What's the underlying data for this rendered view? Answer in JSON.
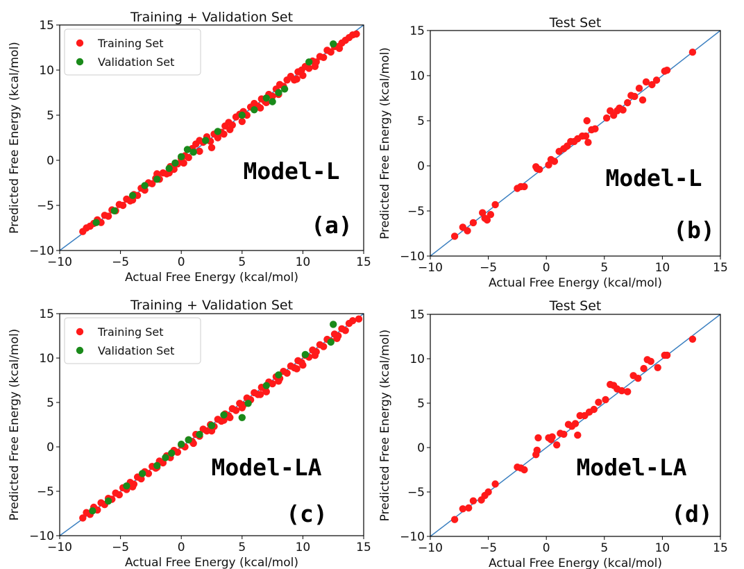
{
  "figure": {
    "x_axis_label": "Actual Free Energy (kcal/mol)",
    "y_axis_label": "Predicted Free Energy (kcal/mol)",
    "colors": {
      "training": "#ff1a1a",
      "validation": "#1a8a1a",
      "test": "#ff1a1a",
      "diagonal": "#3a7fc0"
    }
  },
  "chart_data": [
    {
      "type": "scatter",
      "panel": "(a)",
      "title": "Training + Validation Set",
      "xlabel": "Actual Free Energy (kcal/mol)",
      "ylabel": "Predicted Free Energy (kcal/mol)",
      "model": "Model-L",
      "xlim": [
        -10,
        15
      ],
      "ylim": [
        -10,
        15
      ],
      "xticks": [
        "−10",
        "−5",
        "0",
        "5",
        "10",
        "15"
      ],
      "yticks": [
        "−10",
        "−5",
        "0",
        "5",
        "10",
        "15"
      ],
      "legend": {
        "placement": "top-left",
        "entries": [
          "Training Set",
          "Validation Set"
        ]
      },
      "reference_line": "y = x",
      "series": [
        {
          "name": "Training Set",
          "color": "#ff1a1a",
          "x": [
            -8.1,
            -7.8,
            -7.5,
            -7.2,
            -6.9,
            -6.6,
            -6.3,
            -6.0,
            -5.7,
            -5.4,
            -5.1,
            -4.8,
            -4.5,
            -4.2,
            -3.9,
            -3.6,
            -3.3,
            -3.0,
            -2.7,
            -2.4,
            -2.1,
            -1.8,
            -1.5,
            -1.2,
            -0.9,
            -0.6,
            -0.3,
            0.0,
            0.3,
            0.6,
            0.9,
            1.2,
            1.5,
            1.8,
            2.1,
            2.4,
            2.7,
            3.0,
            3.3,
            3.6,
            3.9,
            4.2,
            4.5,
            4.8,
            5.1,
            5.4,
            5.7,
            6.0,
            6.3,
            6.6,
            6.9,
            7.2,
            7.5,
            7.8,
            8.1,
            8.4,
            8.7,
            9.0,
            9.3,
            9.6,
            9.9,
            10.2,
            10.5,
            10.8,
            11.1,
            11.4,
            11.7,
            12.0,
            12.3,
            12.6,
            12.9,
            13.2,
            13.5,
            13.8,
            14.1,
            14.4,
            -2.0,
            0.2,
            1.5,
            2.5,
            3.5,
            5.0,
            6.5,
            8.0,
            9.5,
            11.0,
            -4.0,
            -1.0,
            4.0,
            7.0,
            10.0,
            13.0
          ],
          "y": [
            -7.9,
            -7.5,
            -7.3,
            -7.0,
            -6.6,
            -6.9,
            -6.1,
            -6.2,
            -5.5,
            -5.6,
            -4.9,
            -5.0,
            -4.3,
            -4.5,
            -3.8,
            -3.9,
            -3.1,
            -3.3,
            -2.5,
            -2.6,
            -2.0,
            -2.1,
            -1.4,
            -1.5,
            -0.7,
            -1.0,
            -0.4,
            0.2,
            0.5,
            0.3,
            1.3,
            1.8,
            2.2,
            2.0,
            2.6,
            2.1,
            2.9,
            2.5,
            3.1,
            3.8,
            4.2,
            3.9,
            4.8,
            5.1,
            5.4,
            5.0,
            5.9,
            6.3,
            6.0,
            6.8,
            6.5,
            7.3,
            7.1,
            7.9,
            8.4,
            8.2,
            8.9,
            9.3,
            8.9,
            9.8,
            10.0,
            10.4,
            10.2,
            11.0,
            10.9,
            11.5,
            11.4,
            12.2,
            12.0,
            12.6,
            12.6,
            13.0,
            13.3,
            13.6,
            13.9,
            14.0,
            -1.5,
            -0.3,
            1.0,
            1.4,
            2.9,
            4.3,
            5.8,
            7.3,
            9.0,
            10.4,
            -4.4,
            -1.4,
            3.4,
            6.4,
            9.4,
            12.4
          ]
        },
        {
          "name": "Validation Set",
          "color": "#1a8a1a",
          "x": [
            -7.0,
            -5.5,
            -4.0,
            -3.0,
            -2.0,
            -1.0,
            -0.5,
            0.0,
            0.5,
            1.0,
            2.0,
            3.0,
            5.0,
            6.0,
            7.0,
            7.5,
            8.0,
            8.5,
            10.5,
            12.5
          ],
          "y": [
            -6.9,
            -5.6,
            -3.9,
            -2.8,
            -2.1,
            -0.9,
            -0.3,
            0.4,
            1.2,
            0.9,
            2.2,
            3.2,
            5.0,
            5.6,
            6.9,
            6.5,
            7.5,
            7.9,
            10.9,
            12.9
          ]
        }
      ]
    },
    {
      "type": "scatter",
      "panel": "(b)",
      "title": "Test Set",
      "xlabel": "Actual Free Energy (kcal/mol)",
      "ylabel": "Predicted Free Energy (kcal/mol)",
      "model": "Model-L",
      "xlim": [
        -10,
        15
      ],
      "ylim": [
        -10,
        15
      ],
      "xticks": [
        "−10",
        "−5",
        "0",
        "5",
        "10",
        "15"
      ],
      "yticks": [
        "−10",
        "−5",
        "0",
        "5",
        "10",
        "15"
      ],
      "reference_line": "y = x",
      "series": [
        {
          "name": "Test Set",
          "color": "#ff1a1a",
          "x": [
            -7.9,
            -7.2,
            -6.8,
            -6.3,
            -5.5,
            -5.3,
            -5.1,
            -4.8,
            -4.4,
            -2.5,
            -2.2,
            -1.9,
            -0.9,
            -0.8,
            -0.6,
            0.2,
            0.4,
            0.7,
            1.1,
            1.5,
            1.8,
            2.1,
            2.4,
            2.7,
            3.1,
            3.4,
            3.5,
            3.6,
            3.9,
            4.2,
            5.2,
            5.5,
            5.8,
            6.1,
            6.3,
            6.6,
            7.0,
            7.3,
            7.6,
            8.0,
            8.3,
            8.6,
            9.1,
            9.5,
            10.2,
            10.4,
            12.6
          ],
          "y": [
            -7.8,
            -6.8,
            -7.2,
            -6.3,
            -5.2,
            -5.8,
            -6.0,
            -5.4,
            -4.3,
            -2.5,
            -2.3,
            -2.3,
            -0.1,
            -0.3,
            -0.4,
            0.1,
            0.7,
            0.5,
            1.6,
            1.9,
            2.2,
            2.7,
            2.7,
            3.0,
            3.3,
            3.3,
            5.0,
            2.6,
            4.0,
            4.1,
            5.3,
            6.1,
            5.6,
            6.1,
            6.4,
            6.2,
            7.0,
            7.8,
            7.7,
            8.6,
            7.3,
            9.3,
            9.0,
            9.5,
            10.5,
            10.6,
            12.6
          ]
        }
      ]
    },
    {
      "type": "scatter",
      "panel": "(c)",
      "title": "Training + Validation Set",
      "xlabel": "Actual Free Energy (kcal/mol)",
      "ylabel": "Predicted Free Energy (kcal/mol)",
      "model": "Model-LA",
      "xlim": [
        -10,
        15
      ],
      "ylim": [
        -10,
        15
      ],
      "xticks": [
        "−10",
        "−5",
        "0",
        "5",
        "10",
        "15"
      ],
      "yticks": [
        "−10",
        "−5",
        "0",
        "5",
        "10",
        "15"
      ],
      "legend": {
        "placement": "top-left",
        "entries": [
          "Training Set",
          "Validation Set"
        ]
      },
      "reference_line": "y = x",
      "series": [
        {
          "name": "Training Set",
          "color": "#ff1a1a",
          "x": [
            -8.1,
            -7.8,
            -7.5,
            -7.2,
            -6.9,
            -6.6,
            -6.3,
            -6.0,
            -5.7,
            -5.4,
            -5.1,
            -4.8,
            -4.5,
            -4.2,
            -3.9,
            -3.6,
            -3.3,
            -3.0,
            -2.7,
            -2.4,
            -2.1,
            -1.8,
            -1.5,
            -1.2,
            -0.9,
            -0.6,
            -0.3,
            0.0,
            0.3,
            0.6,
            0.9,
            1.2,
            1.5,
            1.8,
            2.1,
            2.4,
            2.7,
            3.0,
            3.3,
            3.6,
            3.9,
            4.2,
            4.5,
            4.8,
            5.1,
            5.4,
            5.7,
            6.0,
            6.3,
            6.6,
            6.9,
            7.2,
            7.5,
            7.8,
            8.1,
            8.4,
            8.7,
            9.0,
            9.3,
            9.6,
            9.9,
            10.2,
            10.5,
            10.8,
            11.1,
            11.4,
            11.7,
            12.0,
            12.3,
            12.6,
            12.9,
            13.2,
            13.5,
            13.8,
            14.1,
            14.6,
            -2.0,
            1.0,
            2.5,
            3.5,
            5.0,
            6.5,
            8.0,
            9.5,
            11.0,
            -4.0,
            4.0,
            7.0,
            10.0,
            12.8
          ],
          "y": [
            -8.0,
            -7.4,
            -7.6,
            -6.8,
            -7.1,
            -6.3,
            -6.5,
            -5.8,
            -5.9,
            -5.2,
            -5.4,
            -4.6,
            -4.8,
            -4.0,
            -4.2,
            -3.4,
            -3.6,
            -2.8,
            -3.0,
            -2.2,
            -2.4,
            -1.6,
            -1.8,
            -1.0,
            -1.2,
            -0.4,
            -0.6,
            0.2,
            0.0,
            0.8,
            0.6,
            1.4,
            1.2,
            2.0,
            1.8,
            2.5,
            2.3,
            3.1,
            2.9,
            3.7,
            3.5,
            4.3,
            4.1,
            4.9,
            4.7,
            5.5,
            5.3,
            6.1,
            5.9,
            6.7,
            6.5,
            7.3,
            7.1,
            7.9,
            7.7,
            8.5,
            8.3,
            9.1,
            8.9,
            9.7,
            9.5,
            10.3,
            10.1,
            10.9,
            10.7,
            11.5,
            11.3,
            12.1,
            11.9,
            12.7,
            12.5,
            13.3,
            13.1,
            13.9,
            14.2,
            14.4,
            -2.3,
            0.4,
            1.8,
            3.0,
            4.4,
            5.9,
            7.4,
            8.8,
            10.3,
            -4.5,
            3.3,
            6.2,
            9.2,
            12.2
          ]
        },
        {
          "name": "Validation Set",
          "color": "#1a8a1a",
          "x": [
            -7.3,
            -6.0,
            -4.5,
            -3.2,
            -2.0,
            -1.3,
            -0.8,
            0.0,
            0.6,
            1.5,
            2.5,
            3.5,
            5.0,
            5.5,
            7.0,
            8.0,
            10.2,
            12.3,
            12.5
          ],
          "y": [
            -7.2,
            -6.1,
            -4.4,
            -3.0,
            -2.1,
            -1.2,
            -0.7,
            0.3,
            0.8,
            1.4,
            2.4,
            3.6,
            3.3,
            4.9,
            6.9,
            8.1,
            10.4,
            11.8,
            13.8
          ]
        }
      ]
    },
    {
      "type": "scatter",
      "panel": "(d)",
      "title": "Test Set",
      "xlabel": "Actual Free Energy (kcal/mol)",
      "ylabel": "Predicted Free Energy (kcal/mol)",
      "model": "Model-LA",
      "xlim": [
        -10,
        15
      ],
      "ylim": [
        -10,
        15
      ],
      "xticks": [
        "−10",
        "−5",
        "0",
        "5",
        "10",
        "15"
      ],
      "yticks": [
        "−10",
        "−5",
        "0",
        "5",
        "10",
        "15"
      ],
      "reference_line": "y = x",
      "series": [
        {
          "name": "Test Set",
          "color": "#ff1a1a",
          "x": [
            -7.9,
            -7.2,
            -6.7,
            -6.3,
            -5.6,
            -5.3,
            -5.0,
            -4.4,
            -2.5,
            -2.2,
            -1.9,
            -0.9,
            -0.8,
            -0.7,
            0.2,
            0.5,
            0.9,
            1.2,
            1.5,
            1.9,
            2.2,
            2.5,
            2.9,
            3.3,
            3.7,
            4.1,
            4.5,
            5.1,
            5.5,
            5.8,
            6.1,
            6.5,
            7.0,
            7.5,
            7.9,
            8.4,
            8.7,
            9.0,
            9.6,
            10.2,
            10.4,
            12.6,
            0.4,
            2.7
          ],
          "y": [
            -8.1,
            -6.9,
            -6.8,
            -6.0,
            -5.9,
            -5.4,
            -5.0,
            -4.1,
            -2.2,
            -2.3,
            -2.5,
            -0.8,
            -0.3,
            1.1,
            1.1,
            1.2,
            0.3,
            1.6,
            1.5,
            2.6,
            2.4,
            2.7,
            3.6,
            3.6,
            4.0,
            4.3,
            5.1,
            5.4,
            7.1,
            7.0,
            6.6,
            6.4,
            6.3,
            8.1,
            7.8,
            8.9,
            9.9,
            9.7,
            9.0,
            10.4,
            10.4,
            12.2,
            0.9,
            1.4
          ]
        }
      ]
    }
  ]
}
